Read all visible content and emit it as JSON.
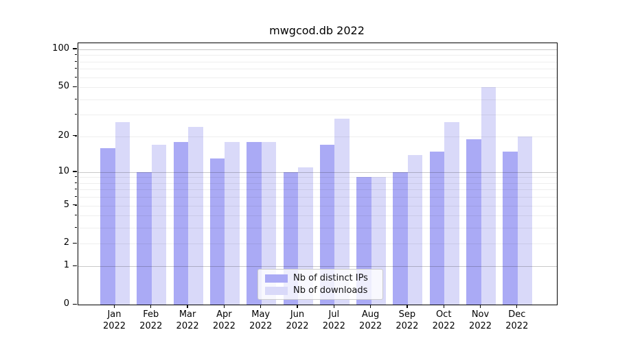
{
  "title": "mwgcod.db 2022",
  "chart_data": {
    "type": "bar",
    "title": "mwgcod.db 2022",
    "y_scale": "log10(value+1)",
    "grid": true,
    "legend_position": "bottom-center",
    "categories": [
      "Jan",
      "Feb",
      "Mar",
      "Apr",
      "May",
      "Jun",
      "Jul",
      "Aug",
      "Sep",
      "Oct",
      "Nov",
      "Dec"
    ],
    "category_year": "2022",
    "series": [
      {
        "name": "Nb of distinct IPs",
        "color": "#aaaaf5",
        "values": [
          16,
          10,
          18,
          13,
          18,
          10,
          17,
          9,
          10,
          15,
          19,
          15
        ]
      },
      {
        "name": "Nb of downloads",
        "color": "#d9d9f9",
        "values": [
          26,
          17,
          24,
          18,
          18,
          11,
          28,
          9,
          14,
          26,
          50,
          20
        ]
      }
    ],
    "y_tick_labels": [
      "100",
      "50",
      "20",
      "10",
      "5",
      "2",
      "1",
      "0"
    ],
    "y_tick_values": [
      100,
      50,
      20,
      10,
      5,
      2,
      1,
      0
    ],
    "minor_gridlines": [
      2,
      3,
      4,
      5,
      6,
      7,
      8,
      9,
      20,
      30,
      40,
      50,
      60,
      70,
      80,
      90
    ],
    "major_gridlines": [
      1,
      10,
      100
    ],
    "ylim": [
      0,
      112
    ],
    "xlabel": "",
    "ylabel": ""
  },
  "colors": {
    "bar_distinct_ips": "#aaaaf5",
    "bar_downloads": "#d9d9f9",
    "axis": "#000000",
    "background": "#ffffff"
  }
}
